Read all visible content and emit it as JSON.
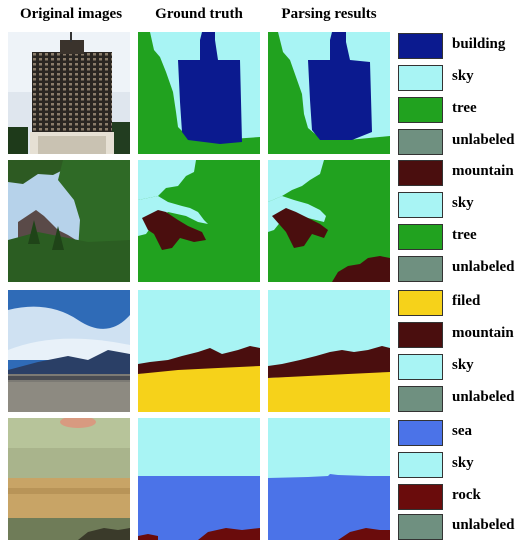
{
  "headers": {
    "original": "Original images",
    "ground_truth": "Ground truth",
    "parsing": "Parsing results"
  },
  "colors": {
    "building": "#0b1a8f",
    "sky": "#a8f4f4",
    "tree": "#21a21f",
    "unlabeled": "#6f9080",
    "mountain": "#4a0e0e",
    "filed": "#f6d21a",
    "sea": "#4b73e8",
    "rock": "#6a0c0c"
  },
  "rows": [
    {
      "legend": [
        {
          "label": "building",
          "color": "#0b1a8f"
        },
        {
          "label": "sky",
          "color": "#a8f4f4"
        },
        {
          "label": "tree",
          "color": "#21a21f"
        },
        {
          "label": "unlabeled",
          "color": "#6f9080"
        }
      ]
    },
    {
      "legend": [
        {
          "label": "mountain",
          "color": "#4a0e0e"
        },
        {
          "label": "sky",
          "color": "#a8f4f4"
        },
        {
          "label": "tree",
          "color": "#21a21f"
        },
        {
          "label": "unlabeled",
          "color": "#6f9080"
        }
      ]
    },
    {
      "legend": [
        {
          "label": "filed",
          "color": "#f6d21a"
        },
        {
          "label": "mountain",
          "color": "#4a0e0e"
        },
        {
          "label": "sky",
          "color": "#a8f4f4"
        },
        {
          "label": "unlabeled",
          "color": "#6f9080"
        }
      ]
    },
    {
      "legend": [
        {
          "label": "sea",
          "color": "#4b73e8"
        },
        {
          "label": "sky",
          "color": "#a8f4f4"
        },
        {
          "label": "rock",
          "color": "#6a0c0c"
        },
        {
          "label": "unlabeled",
          "color": "#6f9080"
        }
      ]
    }
  ]
}
